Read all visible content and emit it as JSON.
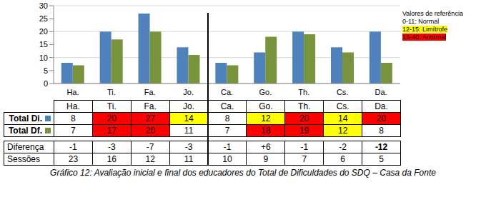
{
  "chart_data": {
    "type": "bar",
    "categories": [
      "Ha.",
      "Ti.",
      "Fa.",
      "Jo.",
      "Ca.",
      "Go.",
      "Th.",
      "Cs.",
      "Da."
    ],
    "series": [
      {
        "name": "Total Di.",
        "color": "#4f81bd",
        "values": [
          8,
          20,
          27,
          14,
          8,
          12,
          20,
          14,
          20
        ]
      },
      {
        "name": "Total Df.",
        "color": "#77933c",
        "values": [
          7,
          17,
          20,
          11,
          7,
          18,
          19,
          12,
          8
        ]
      }
    ],
    "ylim": [
      0,
      30
    ],
    "yticks": [
      0,
      5,
      10,
      15,
      20,
      25,
      30
    ],
    "grid": true
  },
  "reference": {
    "title": "Valores de referência",
    "items": [
      {
        "label": "0-11: Normal",
        "color": null
      },
      {
        "label": "12-15: Limítrofe",
        "color": "#ffff00"
      },
      {
        "label": "16-40: Anormal",
        "color": "#ff0000"
      }
    ]
  },
  "table": {
    "cell_colors": [
      [
        "#ffffff",
        "#ff0000",
        "#ff0000",
        "#ffff00",
        "#ffffff",
        "#ffff00",
        "#ff0000",
        "#ffff00",
        "#ff0000"
      ],
      [
        "#ffffff",
        "#ff0000",
        "#ff0000",
        "#ffffff",
        "#ffffff",
        "#ff0000",
        "#ff0000",
        "#ffff00",
        "#ffffff"
      ]
    ],
    "difference": {
      "label": "Diferença",
      "values": [
        -1,
        -3,
        -7,
        -3,
        -1,
        6,
        -1,
        -2,
        -12
      ],
      "value_labels": [
        "-1",
        "-3",
        "-7",
        "-3",
        "-1",
        "+6",
        "-1",
        "-2",
        "-12"
      ]
    },
    "sessions": {
      "label": "Sessões",
      "values": [
        23,
        16,
        12,
        11,
        10,
        9,
        7,
        6,
        5
      ]
    },
    "separator_after": "Jo."
  },
  "caption": "Gráfico 12: Avaliação inicial e final dos educadores do Total de Dificuldades do SDQ – Casa da Fonte"
}
